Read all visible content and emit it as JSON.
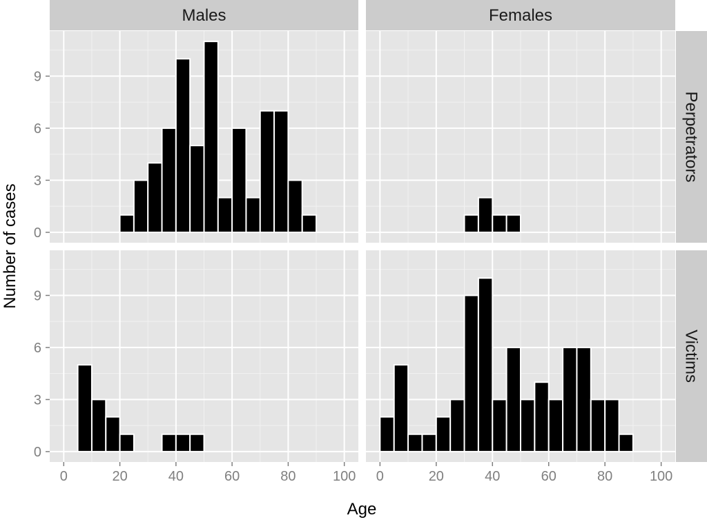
{
  "chart_data": {
    "type": "bar",
    "subtype": "faceted-histogram",
    "title": "",
    "xlabel": "Age",
    "ylabel": "Number of cases",
    "xlim": [
      -5,
      105
    ],
    "ylim": [
      -0.6,
      11.6
    ],
    "x_ticks": [
      0,
      20,
      40,
      60,
      80,
      100
    ],
    "y_ticks": [
      0,
      3,
      6,
      9
    ],
    "bin_width": 5,
    "grid": true,
    "legend": "none",
    "colors": {
      "bar_fill": "#000000",
      "bar_outline": "#ffffff",
      "panel_bg": "#e5e5e5",
      "strip_bg": "#cccccc",
      "grid_major": "#ffffff",
      "grid_minor": "#f2f2f2"
    },
    "columns": [
      "Males",
      "Females"
    ],
    "rows": [
      "Perpetrators",
      "Victims"
    ],
    "panels": [
      {
        "column": "Males",
        "row": "Perpetrators",
        "bins": [
          [
            22.5,
            1
          ],
          [
            27.5,
            3
          ],
          [
            32.5,
            4
          ],
          [
            37.5,
            6
          ],
          [
            42.5,
            10
          ],
          [
            47.5,
            5
          ],
          [
            52.5,
            11
          ],
          [
            57.5,
            2
          ],
          [
            62.5,
            6
          ],
          [
            67.5,
            2
          ],
          [
            72.5,
            7
          ],
          [
            77.5,
            7
          ],
          [
            82.5,
            3
          ],
          [
            87.5,
            1
          ]
        ]
      },
      {
        "column": "Females",
        "row": "Perpetrators",
        "bins": [
          [
            32.5,
            1
          ],
          [
            37.5,
            2
          ],
          [
            42.5,
            1
          ],
          [
            47.5,
            1
          ]
        ]
      },
      {
        "column": "Males",
        "row": "Victims",
        "bins": [
          [
            7.5,
            5
          ],
          [
            12.5,
            3
          ],
          [
            17.5,
            2
          ],
          [
            22.5,
            1
          ],
          [
            37.5,
            1
          ],
          [
            42.5,
            1
          ],
          [
            47.5,
            1
          ]
        ]
      },
      {
        "column": "Females",
        "row": "Victims",
        "bins": [
          [
            2.5,
            2
          ],
          [
            7.5,
            5
          ],
          [
            12.5,
            1
          ],
          [
            17.5,
            1
          ],
          [
            22.5,
            2
          ],
          [
            27.5,
            3
          ],
          [
            32.5,
            9
          ],
          [
            37.5,
            10
          ],
          [
            42.5,
            3
          ],
          [
            47.5,
            6
          ],
          [
            52.5,
            3
          ],
          [
            57.5,
            4
          ],
          [
            62.5,
            3
          ],
          [
            67.5,
            6
          ],
          [
            72.5,
            6
          ],
          [
            77.5,
            3
          ],
          [
            82.5,
            3
          ],
          [
            87.5,
            1
          ]
        ]
      }
    ]
  }
}
